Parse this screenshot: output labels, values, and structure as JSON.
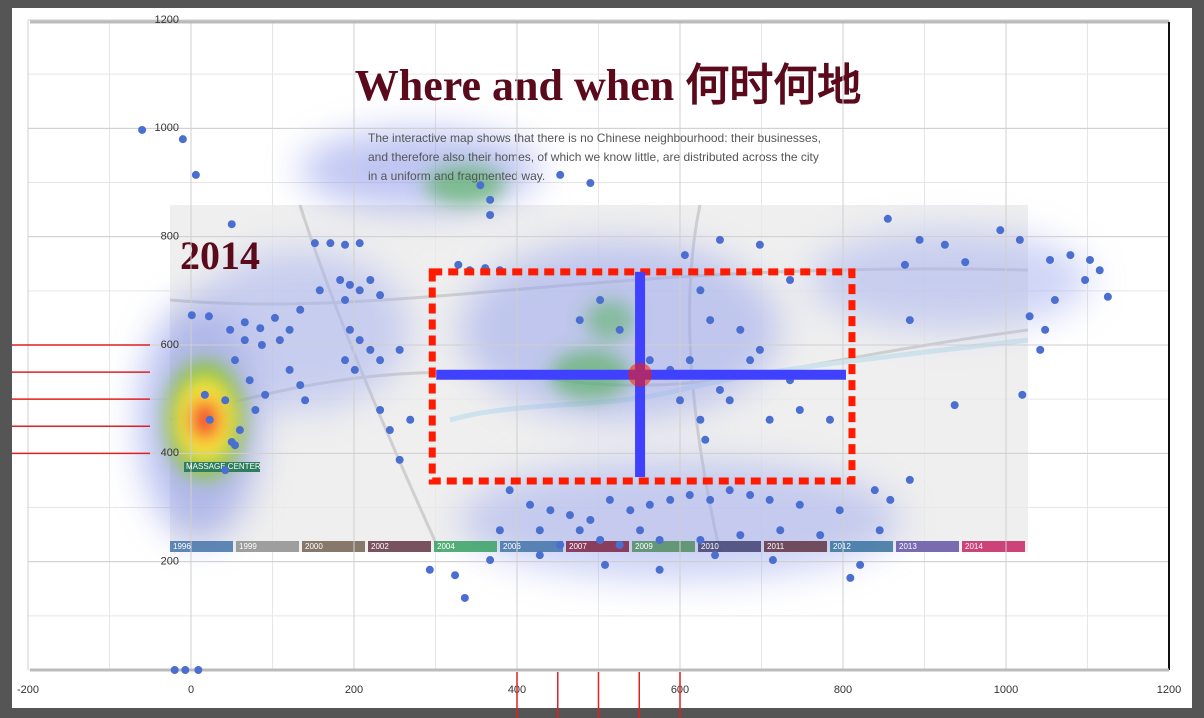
{
  "chart_data": {
    "type": "scatter",
    "color": "#4a6fd0",
    "xlim": [
      -200,
      1200
    ],
    "ylim": [
      0,
      1200
    ],
    "xticks": [
      -200,
      0,
      200,
      400,
      600,
      800,
      1000,
      1200
    ],
    "yticks": [
      200,
      400,
      600,
      800,
      1000,
      1200
    ],
    "grid": true,
    "minor_step": 100,
    "x": [
      -60,
      -10,
      6,
      -20,
      -7,
      9,
      50,
      1,
      22,
      48,
      66,
      85,
      103,
      121,
      134,
      66,
      87,
      109,
      54,
      72,
      91,
      79,
      60,
      54,
      42,
      134,
      140,
      121,
      183,
      195,
      207,
      189,
      220,
      232,
      195,
      207,
      220,
      232,
      189,
      201,
      256,
      152,
      171,
      189,
      207,
      158,
      232,
      244,
      256,
      269,
      328,
      342,
      361,
      379,
      367,
      355,
      453,
      490,
      367,
      855,
      894,
      925,
      950,
      993,
      1017,
      1054,
      1079,
      1103,
      1115,
      1097,
      1060,
      1125,
      1029,
      1048,
      1042,
      1020,
      937,
      876,
      882,
      606,
      649,
      698,
      625,
      637,
      674,
      698,
      735,
      747,
      784,
      649,
      625,
      631,
      686,
      735,
      563,
      588,
      612,
      661,
      710,
      600,
      502,
      477,
      526,
      391,
      416,
      441,
      465,
      490,
      514,
      539,
      563,
      588,
      612,
      637,
      661,
      686,
      710,
      747,
      796,
      839,
      858,
      882,
      845,
      379,
      428,
      453,
      477,
      502,
      526,
      551,
      575,
      625,
      674,
      723,
      772,
      293,
      324,
      336,
      367,
      428,
      508,
      575,
      643,
      714,
      809,
      821,
      17,
      23,
      50,
      42
    ],
    "y": [
      997,
      980,
      914,
      0,
      0,
      0,
      823,
      655,
      653,
      628,
      642,
      631,
      650,
      628,
      665,
      609,
      600,
      609,
      572,
      535,
      508,
      480,
      443,
      415,
      369,
      526,
      498,
      554,
      720,
      711,
      701,
      683,
      720,
      692,
      628,
      609,
      591,
      572,
      572,
      554,
      591,
      788,
      788,
      785,
      788,
      701,
      480,
      443,
      388,
      462,
      748,
      738,
      742,
      738,
      868,
      895,
      914,
      899,
      840,
      833,
      794,
      785,
      753,
      812,
      794,
      757,
      766,
      757,
      738,
      720,
      683,
      689,
      653,
      628,
      591,
      508,
      489,
      748,
      646,
      766,
      794,
      785,
      701,
      646,
      628,
      591,
      535,
      480,
      462,
      517,
      462,
      425,
      572,
      720,
      572,
      554,
      572,
      498,
      462,
      498,
      683,
      646,
      628,
      332,
      305,
      295,
      286,
      277,
      314,
      295,
      305,
      314,
      323,
      314,
      332,
      323,
      314,
      305,
      295,
      332,
      314,
      351,
      258,
      258,
      258,
      231,
      258,
      240,
      231,
      258,
      240,
      240,
      249,
      258,
      249,
      185,
      175,
      133,
      203,
      212,
      194,
      185,
      212,
      203,
      170,
      194,
      508,
      462,
      421,
      498
    ],
    "region": {
      "x": [
        296,
        811
      ],
      "y": [
        349,
        735
      ],
      "color": "#ff1a00"
    },
    "center": {
      "x": 551,
      "y": 545,
      "color": "#4040ff"
    },
    "markers": {
      "y": [
        600,
        550,
        500,
        450,
        400
      ],
      "x": [
        400,
        450,
        500,
        550,
        600
      ],
      "color": "#e02020"
    },
    "page_title": "Where and when 何时何地",
    "page_text": [
      "The interactive map shows that there is no Chinese neighbourhood: their businesses,",
      "and therefore also their homes, of which we know little, are distributed across the city",
      "in a uniform and fragmented way."
    ],
    "year": "2014",
    "map_label": "MASSAGE CENTER",
    "timeline": [
      "1996",
      "1999",
      "2000",
      "2002",
      "2004",
      "2006",
      "2007",
      "2009",
      "2010",
      "2011",
      "2012",
      "2013",
      "2014"
    ]
  }
}
